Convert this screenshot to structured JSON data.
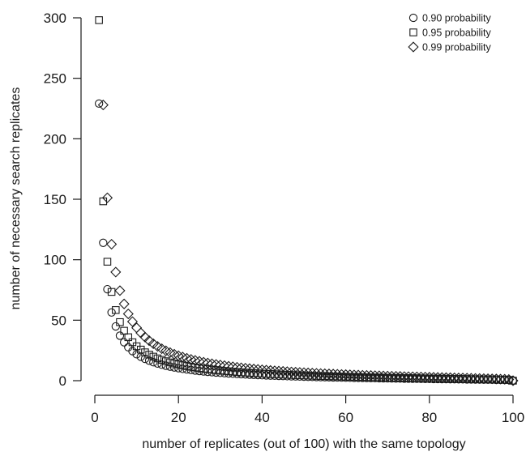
{
  "chart_data": {
    "type": "scatter",
    "title": "",
    "xlabel": "number of replicates (out of 100) with the same topology",
    "ylabel": "number of necessary search replicates",
    "xlim": [
      0,
      100
    ],
    "ylim": [
      0,
      300
    ],
    "x_ticks": [
      "0",
      "20",
      "40",
      "60",
      "80",
      "100"
    ],
    "y_ticks": [
      "0",
      "50",
      "100",
      "150",
      "200",
      "250",
      "300"
    ],
    "grid": false,
    "legend_position": "top-right",
    "marker_rule": "values for k = 1..100 follow the curve log(1 - p) / log(1 - k/100); k = 100 plotted as 0",
    "series": [
      {
        "name": "0.90 probability",
        "marker": "circle",
        "probability": 0.9
      },
      {
        "name": "0.95 probability",
        "marker": "square",
        "probability": 0.95
      },
      {
        "name": "0.99 probability",
        "marker": "diamond",
        "probability": 0.99
      }
    ]
  }
}
